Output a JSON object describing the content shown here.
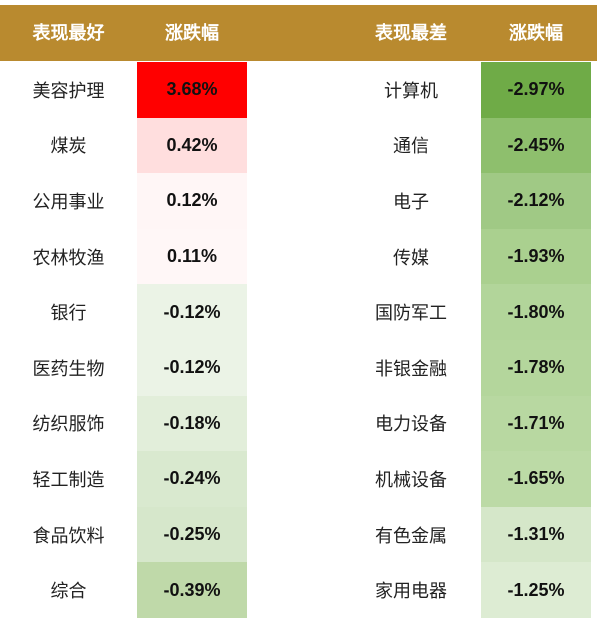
{
  "chart_data": {
    "type": "table",
    "columns": [
      "表现最好",
      "涨跌幅",
      "表现最差",
      "涨跌幅"
    ],
    "best": [
      {
        "name": "美容护理",
        "value": "3.68%",
        "color": "#ff0000"
      },
      {
        "name": "煤炭",
        "value": "0.42%",
        "color": "#ffdede"
      },
      {
        "name": "公用事业",
        "value": "0.12%",
        "color": "#fff6f6"
      },
      {
        "name": "农林牧渔",
        "value": "0.11%",
        "color": "#fff7f7"
      },
      {
        "name": "银行",
        "value": "-0.12%",
        "color": "#ebf3e6"
      },
      {
        "name": "医药生物",
        "value": "-0.12%",
        "color": "#ebf3e6"
      },
      {
        "name": "纺织服饰",
        "value": "-0.18%",
        "color": "#e2eeda"
      },
      {
        "name": "轻工制造",
        "value": "-0.24%",
        "color": "#d9e9cf"
      },
      {
        "name": "食品饮料",
        "value": "-0.25%",
        "color": "#d6e7cb"
      },
      {
        "name": "综合",
        "value": "-0.39%",
        "color": "#bfd9a9"
      }
    ],
    "worst": [
      {
        "name": "计算机",
        "value": "-2.97%",
        "color": "#6fab47"
      },
      {
        "name": "通信",
        "value": "-2.45%",
        "color": "#8ebf6d"
      },
      {
        "name": "电子",
        "value": "-2.12%",
        "color": "#a0c985"
      },
      {
        "name": "传媒",
        "value": "-1.93%",
        "color": "#aad08f"
      },
      {
        "name": "国防军工",
        "value": "-1.80%",
        "color": "#b2d59a"
      },
      {
        "name": "非银金融",
        "value": "-1.78%",
        "color": "#b4d69c"
      },
      {
        "name": "电力设备",
        "value": "-1.71%",
        "color": "#b8d8a1"
      },
      {
        "name": "机械设备",
        "value": "-1.65%",
        "color": "#bcdaa6"
      },
      {
        "name": "有色金属",
        "value": "-1.31%",
        "color": "#d5e7c9"
      },
      {
        "name": "家用电器",
        "value": "-1.25%",
        "color": "#ddecd3"
      }
    ]
  },
  "colors": {
    "header": "#b98a2f",
    "header_text": "#ffffff"
  }
}
